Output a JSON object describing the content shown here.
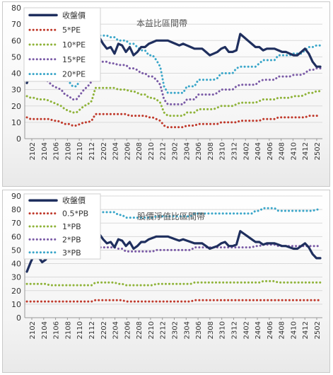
{
  "chart_data": [
    {
      "type": "line",
      "title": "本益比區間帶",
      "xlabel": "",
      "ylabel": "",
      "ylim": [
        0,
        80
      ],
      "yticks": [
        0,
        10,
        20,
        30,
        40,
        50,
        60,
        70,
        80
      ],
      "grid": true,
      "legend_position": "top-left",
      "x_tick_labels": [
        "2102",
        "2104",
        "2106",
        "2108",
        "2110",
        "2112",
        "2202",
        "2204",
        "2206",
        "2208",
        "2210",
        "2212",
        "2302",
        "2304",
        "2306",
        "2308",
        "2310",
        "2312",
        "2402",
        "2404",
        "2406",
        "2408",
        "2410",
        "2412",
        "2502"
      ],
      "series": [
        {
          "name": "收盤價",
          "color": "#1f2f5e",
          "style": "solid",
          "values": [
            34,
            41,
            47,
            45,
            41,
            43,
            56,
            57,
            56,
            55,
            60,
            58,
            61,
            57,
            58,
            59,
            57,
            60,
            61,
            62,
            58,
            55,
            56,
            52,
            58,
            57,
            53,
            56,
            51,
            53,
            56,
            56,
            58,
            59,
            60,
            60,
            60,
            60,
            59,
            58,
            57,
            58,
            57,
            56,
            55,
            55,
            55,
            53,
            51,
            52,
            53,
            55,
            56,
            53,
            53,
            54,
            64,
            62,
            60,
            58,
            56,
            56,
            54,
            55,
            55,
            55,
            54,
            53,
            53,
            52,
            51,
            51,
            53,
            55,
            52,
            47,
            44,
            44
          ]
        },
        {
          "name": "5*PE",
          "color": "#c0392b",
          "style": "dotted",
          "values": [
            13,
            12,
            12,
            12,
            12,
            12,
            12,
            11,
            11,
            10,
            9,
            9,
            8,
            8,
            9,
            10,
            10,
            11,
            15,
            15,
            15,
            15,
            15,
            15,
            15,
            15,
            15,
            14,
            14,
            14,
            14,
            14,
            13,
            13,
            12,
            11,
            8,
            7,
            7,
            7,
            7,
            7,
            8,
            8,
            8,
            9,
            9,
            9,
            9,
            9,
            9,
            10,
            10,
            10,
            10,
            10,
            11,
            11,
            11,
            11,
            11,
            11,
            12,
            12,
            12,
            12,
            13,
            13,
            13,
            13,
            13,
            13,
            13,
            13,
            14,
            14,
            14,
            14
          ]
        },
        {
          "name": "10*PE",
          "color": "#8fb339",
          "style": "dotted",
          "values": [
            26,
            25,
            25,
            24,
            24,
            24,
            23,
            22,
            21,
            20,
            18,
            17,
            16,
            16,
            18,
            20,
            21,
            23,
            31,
            31,
            31,
            31,
            31,
            31,
            30,
            30,
            30,
            29,
            29,
            28,
            27,
            27,
            25,
            25,
            24,
            22,
            16,
            14,
            14,
            14,
            14,
            14,
            16,
            16,
            16,
            18,
            18,
            18,
            18,
            18,
            19,
            20,
            20,
            20,
            20,
            21,
            22,
            22,
            22,
            22,
            22,
            23,
            24,
            24,
            24,
            24,
            25,
            25,
            25,
            25,
            26,
            26,
            26,
            27,
            28,
            28,
            29,
            29
          ]
        },
        {
          "name": "15*PE",
          "color": "#7a5aa6",
          "style": "dotted",
          "values": [
            38,
            37,
            37,
            36,
            36,
            36,
            34,
            32,
            31,
            30,
            27,
            26,
            24,
            24,
            27,
            30,
            32,
            35,
            47,
            47,
            47,
            47,
            46,
            46,
            45,
            45,
            45,
            43,
            43,
            42,
            40,
            40,
            38,
            38,
            36,
            33,
            24,
            21,
            21,
            21,
            21,
            21,
            24,
            24,
            24,
            27,
            27,
            27,
            27,
            27,
            28,
            30,
            30,
            30,
            30,
            32,
            33,
            33,
            33,
            33,
            33,
            35,
            36,
            36,
            36,
            36,
            38,
            38,
            38,
            38,
            39,
            39,
            39,
            40,
            42,
            42,
            43,
            43
          ]
        },
        {
          "name": "20*PE",
          "color": "#3aa6c9",
          "style": "dotted",
          "values": [
            51,
            50,
            49,
            48,
            48,
            48,
            45,
            43,
            41,
            40,
            36,
            35,
            32,
            32,
            36,
            40,
            43,
            46,
            63,
            63,
            63,
            63,
            62,
            62,
            60,
            60,
            60,
            58,
            58,
            56,
            54,
            54,
            51,
            51,
            48,
            44,
            32,
            28,
            28,
            28,
            28,
            28,
            32,
            32,
            32,
            36,
            36,
            36,
            36,
            36,
            37,
            40,
            40,
            40,
            40,
            43,
            44,
            44,
            44,
            44,
            44,
            46,
            48,
            48,
            48,
            48,
            51,
            51,
            51,
            51,
            52,
            52,
            52,
            54,
            56,
            56,
            57,
            57
          ]
        }
      ]
    },
    {
      "type": "line",
      "title": "股價淨值比區間帶",
      "xlabel": "",
      "ylabel": "",
      "ylim": [
        0,
        90
      ],
      "yticks": [
        0,
        10,
        20,
        30,
        40,
        50,
        60,
        70,
        80,
        90
      ],
      "grid": true,
      "legend_position": "top-left",
      "x_tick_labels": [
        "2102",
        "2104",
        "2106",
        "2108",
        "2110",
        "2112",
        "2202",
        "2204",
        "2206",
        "2208",
        "2210",
        "2212",
        "2302",
        "2304",
        "2306",
        "2308",
        "2310",
        "2312",
        "2402",
        "2404",
        "2406",
        "2408",
        "2410",
        "2412",
        "2502"
      ],
      "series": [
        {
          "name": "收盤價",
          "color": "#1f2f5e",
          "style": "solid",
          "values": [
            34,
            41,
            47,
            45,
            41,
            43,
            56,
            57,
            56,
            55,
            60,
            58,
            61,
            57,
            58,
            59,
            57,
            60,
            61,
            62,
            58,
            55,
            56,
            52,
            58,
            57,
            53,
            56,
            51,
            53,
            56,
            56,
            58,
            59,
            60,
            60,
            60,
            60,
            59,
            58,
            57,
            58,
            57,
            56,
            55,
            55,
            55,
            53,
            51,
            52,
            53,
            55,
            56,
            53,
            53,
            54,
            64,
            62,
            60,
            58,
            56,
            56,
            54,
            55,
            55,
            55,
            54,
            53,
            53,
            52,
            51,
            51,
            53,
            55,
            52,
            47,
            44,
            44
          ]
        },
        {
          "name": "0.5*PB",
          "color": "#c0392b",
          "style": "dotted",
          "values": [
            12,
            12,
            12,
            12,
            12,
            12,
            12,
            12,
            12,
            12,
            12,
            12,
            12,
            12,
            12,
            12,
            12,
            12,
            13,
            13,
            13,
            13,
            13,
            13,
            13,
            13,
            12,
            12,
            12,
            12,
            12,
            12,
            12,
            12,
            12,
            12,
            12,
            12,
            12,
            12,
            12,
            12,
            12,
            12,
            13,
            13,
            13,
            13,
            13,
            13,
            13,
            13,
            13,
            13,
            13,
            13,
            13,
            13,
            13,
            13,
            13,
            13,
            13,
            13,
            13,
            13,
            13,
            13,
            13,
            13,
            13,
            13,
            13,
            13,
            13,
            13,
            13,
            13
          ]
        },
        {
          "name": "1*PB",
          "color": "#8fb339",
          "style": "dotted",
          "values": [
            25,
            25,
            25,
            25,
            25,
            25,
            24,
            24,
            24,
            24,
            24,
            24,
            24,
            24,
            24,
            24,
            24,
            24,
            26,
            26,
            26,
            26,
            26,
            26,
            25,
            25,
            24,
            24,
            24,
            24,
            24,
            24,
            24,
            24,
            25,
            25,
            25,
            25,
            25,
            25,
            25,
            25,
            25,
            25,
            26,
            26,
            26,
            26,
            26,
            26,
            26,
            26,
            26,
            26,
            26,
            26,
            26,
            26,
            26,
            26,
            26,
            26,
            27,
            27,
            27,
            27,
            26,
            26,
            26,
            26,
            26,
            26,
            26,
            26,
            26,
            26,
            26,
            26
          ]
        },
        {
          "name": "2*PB",
          "color": "#7a5aa6",
          "style": "dotted",
          "values": [
            50,
            50,
            50,
            50,
            50,
            50,
            49,
            49,
            49,
            49,
            49,
            49,
            49,
            49,
            49,
            49,
            49,
            49,
            52,
            52,
            52,
            52,
            52,
            52,
            51,
            51,
            49,
            49,
            49,
            49,
            49,
            49,
            49,
            49,
            50,
            50,
            50,
            50,
            50,
            50,
            50,
            50,
            50,
            50,
            52,
            52,
            52,
            52,
            52,
            52,
            52,
            52,
            52,
            52,
            52,
            52,
            52,
            52,
            52,
            52,
            53,
            53,
            54,
            54,
            54,
            54,
            53,
            53,
            53,
            53,
            53,
            53,
            53,
            53,
            53,
            53,
            53,
            53
          ]
        },
        {
          "name": "3*PB",
          "color": "#3aa6c9",
          "style": "dotted",
          "values": [
            75,
            75,
            75,
            75,
            75,
            75,
            74,
            74,
            74,
            74,
            74,
            74,
            74,
            74,
            74,
            74,
            74,
            74,
            78,
            78,
            78,
            78,
            78,
            78,
            76,
            76,
            74,
            74,
            74,
            74,
            74,
            74,
            74,
            74,
            75,
            75,
            75,
            75,
            75,
            75,
            75,
            75,
            75,
            75,
            77,
            77,
            77,
            77,
            77,
            77,
            77,
            77,
            77,
            77,
            77,
            77,
            77,
            77,
            77,
            77,
            79,
            79,
            81,
            81,
            81,
            81,
            79,
            79,
            79,
            79,
            79,
            79,
            79,
            79,
            79,
            79,
            80,
            80
          ]
        }
      ]
    }
  ]
}
